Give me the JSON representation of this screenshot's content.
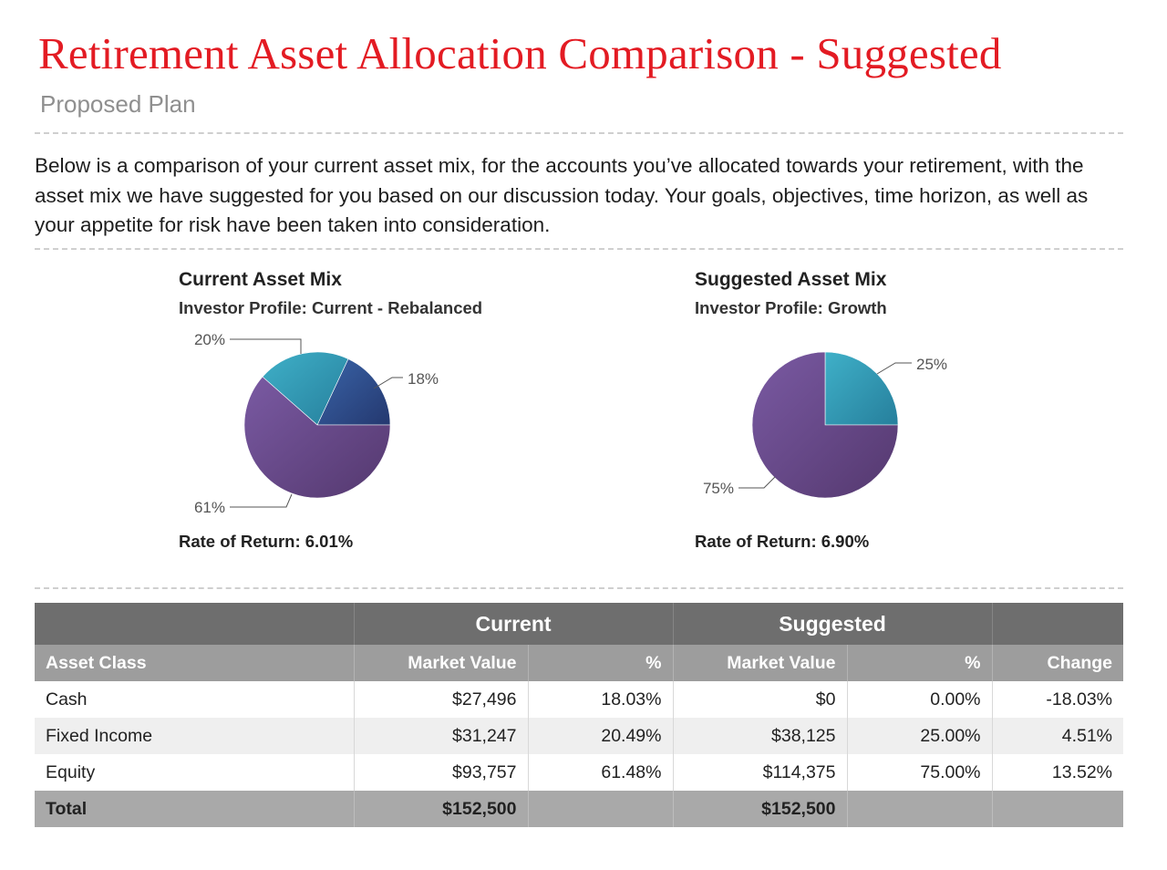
{
  "header": {
    "title": "Retirement Asset Allocation Comparison - Suggested",
    "subtitle": "Proposed Plan"
  },
  "intro": {
    "text": "Below is a comparison of your current asset mix, for the accounts you’ve allocated towards your retirement, with the asset mix we have suggested for you based on our discussion today. Your goals, objectives, time horizon, as well as your appetite for risk have been taken into consideration."
  },
  "colors": {
    "title": "#e31b23",
    "cash": "#2f4f8f",
    "fixed_income": "#2f9bb8",
    "equity": "#6a4c8f"
  },
  "chart_data": [
    {
      "type": "pie",
      "title": "Current Asset Mix",
      "subtitle": "Investor Profile: Current - Rebalanced",
      "categories": [
        "Cash",
        "Fixed Income",
        "Equity"
      ],
      "values": [
        18.03,
        20.49,
        61.48
      ],
      "slice_labels": [
        "18%",
        "20%",
        "61%"
      ],
      "footer": "Rate of Return: 6.01%"
    },
    {
      "type": "pie",
      "title": "Suggested Asset Mix",
      "subtitle": "Investor Profile: Growth",
      "categories": [
        "Cash",
        "Fixed Income",
        "Equity"
      ],
      "values": [
        0,
        25.0,
        75.0
      ],
      "slice_labels": [
        "",
        "25%",
        "75%"
      ],
      "footer": "Rate of Return: 6.90%"
    }
  ],
  "table": {
    "group_headers": {
      "current": "Current",
      "suggested": "Suggested"
    },
    "headers": {
      "asset_class": "Asset Class",
      "current_value": "Market Value",
      "current_pct": "%",
      "suggested_value": "Market Value",
      "suggested_pct": "%",
      "change": "Change"
    },
    "rows": [
      {
        "asset_class": "Cash",
        "current_value": "$27,496",
        "current_pct": "18.03%",
        "suggested_value": "$0",
        "suggested_pct": "0.00%",
        "change": "-18.03%"
      },
      {
        "asset_class": "Fixed Income",
        "current_value": "$31,247",
        "current_pct": "20.49%",
        "suggested_value": "$38,125",
        "suggested_pct": "25.00%",
        "change": "4.51%"
      },
      {
        "asset_class": "Equity",
        "current_value": "$93,757",
        "current_pct": "61.48%",
        "suggested_value": "$114,375",
        "suggested_pct": "75.00%",
        "change": "13.52%"
      }
    ],
    "total": {
      "label": "Total",
      "current_value": "$152,500",
      "suggested_value": "$152,500"
    }
  }
}
